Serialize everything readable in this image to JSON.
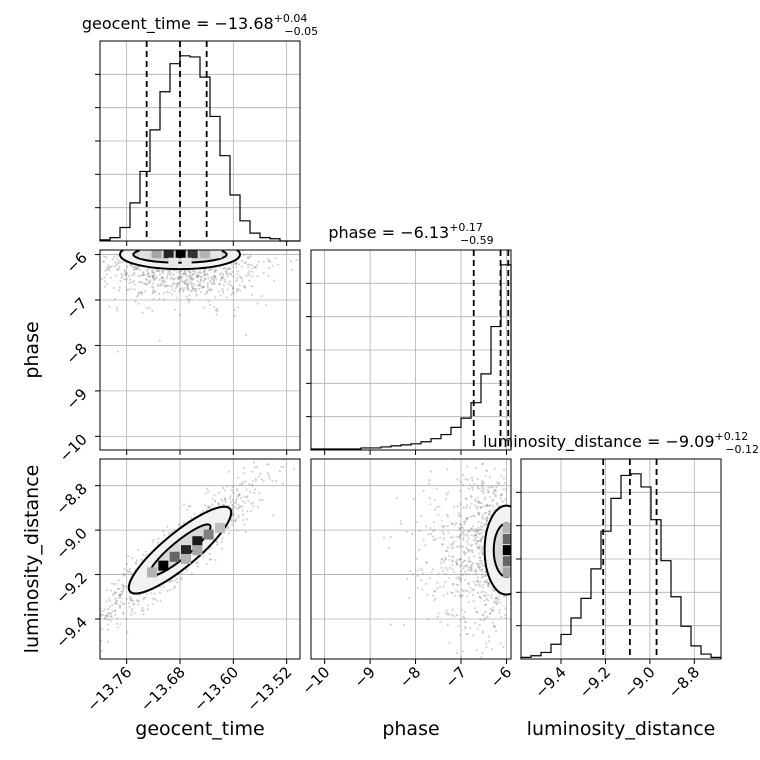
{
  "chart_data": {
    "type": "corner",
    "parameters": [
      {
        "name": "geocent_time",
        "axis_label": "geocent_time",
        "title_main": "geocent_time = −13.68",
        "title_sup": "+0.04",
        "title_sub": "−0.05",
        "range": [
          -13.8,
          -13.5
        ],
        "ticks": [
          -13.76,
          -13.68,
          -13.6,
          -13.52
        ],
        "tick_labels": [
          "−13.76",
          "−13.68",
          "−13.60",
          "−13.52"
        ],
        "quantiles": [
          -13.73,
          -13.68,
          -13.64
        ],
        "hist_bin_edges": [
          -13.8,
          -13.785,
          -13.77,
          -13.755,
          -13.74,
          -13.725,
          -13.71,
          -13.695,
          -13.68,
          -13.665,
          -13.65,
          -13.635,
          -13.62,
          -13.605,
          -13.59,
          -13.575,
          -13.56,
          -13.545,
          -13.53,
          -13.515,
          -13.5
        ],
        "hist_values": [
          1,
          3,
          12,
          34,
          62,
          99,
          133,
          158,
          165,
          164,
          146,
          111,
          76,
          41,
          18,
          7,
          3,
          2,
          0,
          0
        ]
      },
      {
        "name": "phase",
        "axis_label": "phase",
        "title_main": "phase = −6.13",
        "title_sup": "+0.17",
        "title_sub": "−0.59",
        "range": [
          -10.3,
          -5.9
        ],
        "ticks": [
          -10,
          -9,
          -8,
          -7,
          -6
        ],
        "tick_labels": [
          "−10",
          "−9",
          "−8",
          "−7",
          "−6"
        ],
        "quantiles": [
          -6.72,
          -6.13,
          -5.96
        ],
        "hist_bin_edges": [
          -10.3,
          -10.08,
          -9.86,
          -9.64,
          -9.42,
          -9.2,
          -8.98,
          -8.76,
          -8.54,
          -8.32,
          -8.1,
          -7.88,
          -7.66,
          -7.44,
          -7.22,
          -7.0,
          -6.78,
          -6.56,
          -6.34,
          -6.12,
          -5.9
        ],
        "hist_values": [
          1,
          1,
          1,
          1,
          1,
          2,
          2,
          3,
          4,
          5,
          6,
          8,
          11,
          15,
          22,
          31,
          46,
          74,
          120,
          180
        ]
      },
      {
        "name": "luminosity_distance",
        "axis_label": "luminosity_distance",
        "title_main": "luminosity_distance = −9.09",
        "title_sup": "+0.12",
        "title_sub": "−0.12",
        "range": [
          -9.58,
          -8.68
        ],
        "ticks": [
          -9.4,
          -9.2,
          -9.0,
          -8.8
        ],
        "tick_labels": [
          "−9.4",
          "−9.2",
          "−9.0",
          "−8.8"
        ],
        "quantiles": [
          -9.21,
          -9.09,
          -8.97
        ],
        "hist_bin_edges": [
          -9.58,
          -9.535,
          -9.49,
          -9.445,
          -9.4,
          -9.355,
          -9.31,
          -9.265,
          -9.22,
          -9.175,
          -9.13,
          -9.085,
          -9.04,
          -8.995,
          -8.95,
          -8.905,
          -8.86,
          -8.815,
          -8.77,
          -8.725,
          -8.68
        ],
        "hist_values": [
          1,
          2,
          4,
          9,
          15,
          25,
          37,
          55,
          78,
          98,
          112,
          113,
          105,
          85,
          60,
          38,
          20,
          8,
          3,
          1
        ]
      }
    ],
    "grid": true,
    "contour_levels": [
      "1-sigma",
      "2-sigma"
    ],
    "panels_2d": [
      {
        "x_param": "geocent_time",
        "y_param": "phase",
        "mode": [
          -13.68,
          -6.0
        ],
        "sigma": [
          0.04,
          0.25
        ],
        "rho": 0.15,
        "contour_half_widths": [
          [
            0.07,
            0.18
          ],
          [
            0.09,
            0.32
          ]
        ],
        "hist_cells": [
          [
            -13.715,
            -5.97,
            0.35
          ],
          [
            -13.697,
            -5.97,
            0.85
          ],
          [
            -13.679,
            -5.97,
            1.0
          ],
          [
            -13.661,
            -5.97,
            0.8
          ],
          [
            -13.643,
            -5.97,
            0.3
          ],
          [
            -13.733,
            -5.97,
            0.12
          ],
          [
            -13.625,
            -5.97,
            0.1
          ],
          [
            -13.69,
            -6.18,
            0.1
          ],
          [
            -13.67,
            -6.18,
            0.1
          ]
        ]
      },
      {
        "x_param": "geocent_time",
        "y_param": "luminosity_distance",
        "mode": [
          -13.68,
          -9.09
        ],
        "sigma": [
          0.045,
          0.12
        ],
        "rho": 0.93,
        "contour_half_widths": [
          [
            0.045,
            0.1
          ],
          [
            0.075,
            0.14
          ]
        ],
        "hist_cells": [
          [
            -13.705,
            -9.16,
            1.0
          ],
          [
            -13.688,
            -9.12,
            0.6
          ],
          [
            -13.671,
            -9.09,
            0.85
          ],
          [
            -13.654,
            -9.05,
            0.9
          ],
          [
            -13.637,
            -9.02,
            0.5
          ],
          [
            -13.722,
            -9.19,
            0.3
          ],
          [
            -13.62,
            -8.99,
            0.25
          ],
          [
            -13.671,
            -9.13,
            0.3
          ],
          [
            -13.654,
            -9.09,
            0.35
          ]
        ]
      },
      {
        "x_param": "phase",
        "y_param": "luminosity_distance",
        "mode": [
          -6.0,
          -9.09
        ],
        "sigma": [
          0.35,
          0.12
        ],
        "rho": 0.05,
        "contour_half_widths": [
          [
            0.28,
            0.12
          ],
          [
            0.48,
            0.2
          ]
        ],
        "hist_cells": [
          [
            -5.97,
            -9.09,
            1.0
          ],
          [
            -5.97,
            -9.14,
            0.6
          ],
          [
            -5.97,
            -9.04,
            0.6
          ],
          [
            -5.97,
            -9.19,
            0.35
          ],
          [
            -5.97,
            -8.99,
            0.3
          ]
        ]
      }
    ]
  }
}
